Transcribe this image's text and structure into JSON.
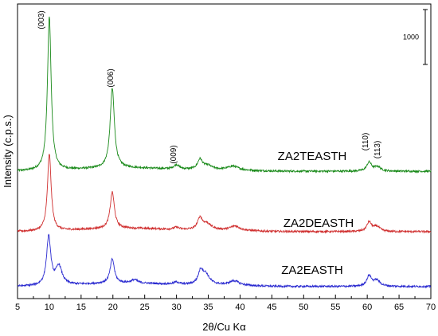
{
  "chart_data": {
    "type": "line",
    "xlabel": "2θ/Cu Kα",
    "ylabel": "Intensity (c.p.s.)",
    "xlim": [
      5,
      70
    ],
    "xticks": [
      5,
      10,
      15,
      20,
      25,
      30,
      35,
      40,
      45,
      50,
      55,
      60,
      65,
      70
    ],
    "y_ticks_shown": false,
    "grid": false,
    "legend": "none",
    "scale_bar": {
      "label": "1000",
      "value": 1000
    },
    "peak_labels": [
      {
        "text": "(003)",
        "x": 10.0
      },
      {
        "text": "(006)",
        "x": 19.9
      },
      {
        "text": "(009)",
        "x": 30.0
      },
      {
        "text": "(110)",
        "x": 60.2
      },
      {
        "text": "(113)",
        "x": 61.6
      }
    ],
    "series": [
      {
        "name": "ZA2TEASTH",
        "color": "#1a8a1a",
        "offset": 2100,
        "peaks": [
          {
            "x": 10.0,
            "height": 2800,
            "width": 0.35
          },
          {
            "x": 19.9,
            "height": 1450,
            "width": 0.4
          },
          {
            "x": 30.0,
            "height": 80,
            "width": 0.5
          },
          {
            "x": 33.7,
            "height": 180,
            "width": 0.45
          },
          {
            "x": 34.9,
            "height": 70,
            "width": 0.8
          },
          {
            "x": 38.9,
            "height": 70,
            "width": 1.0
          },
          {
            "x": 60.3,
            "height": 160,
            "width": 0.45
          },
          {
            "x": 61.6,
            "height": 80,
            "width": 0.6
          }
        ]
      },
      {
        "name": "ZA2DEASTH",
        "color": "#d03030",
        "offset": 1000,
        "peaks": [
          {
            "x": 10.0,
            "height": 1400,
            "width": 0.35
          },
          {
            "x": 19.9,
            "height": 660,
            "width": 0.4
          },
          {
            "x": 30.0,
            "height": 40,
            "width": 0.5
          },
          {
            "x": 33.7,
            "height": 210,
            "width": 0.45
          },
          {
            "x": 34.8,
            "height": 110,
            "width": 0.8
          },
          {
            "x": 39.2,
            "height": 80,
            "width": 0.9
          },
          {
            "x": 60.3,
            "height": 170,
            "width": 0.45
          },
          {
            "x": 61.5,
            "height": 90,
            "width": 0.6
          }
        ]
      },
      {
        "name": "ZA2EASTH",
        "color": "#2a2ad0",
        "offset": 0,
        "peaks": [
          {
            "x": 9.9,
            "height": 880,
            "width": 0.4
          },
          {
            "x": 11.5,
            "height": 340,
            "width": 0.6
          },
          {
            "x": 19.9,
            "height": 440,
            "width": 0.4
          },
          {
            "x": 23.4,
            "height": 60,
            "width": 0.6
          },
          {
            "x": 30.0,
            "height": 40,
            "width": 0.5
          },
          {
            "x": 33.8,
            "height": 230,
            "width": 0.45
          },
          {
            "x": 34.6,
            "height": 180,
            "width": 0.7
          },
          {
            "x": 39.1,
            "height": 80,
            "width": 0.9
          },
          {
            "x": 60.3,
            "height": 190,
            "width": 0.45
          },
          {
            "x": 61.5,
            "height": 110,
            "width": 0.6
          }
        ]
      }
    ]
  }
}
